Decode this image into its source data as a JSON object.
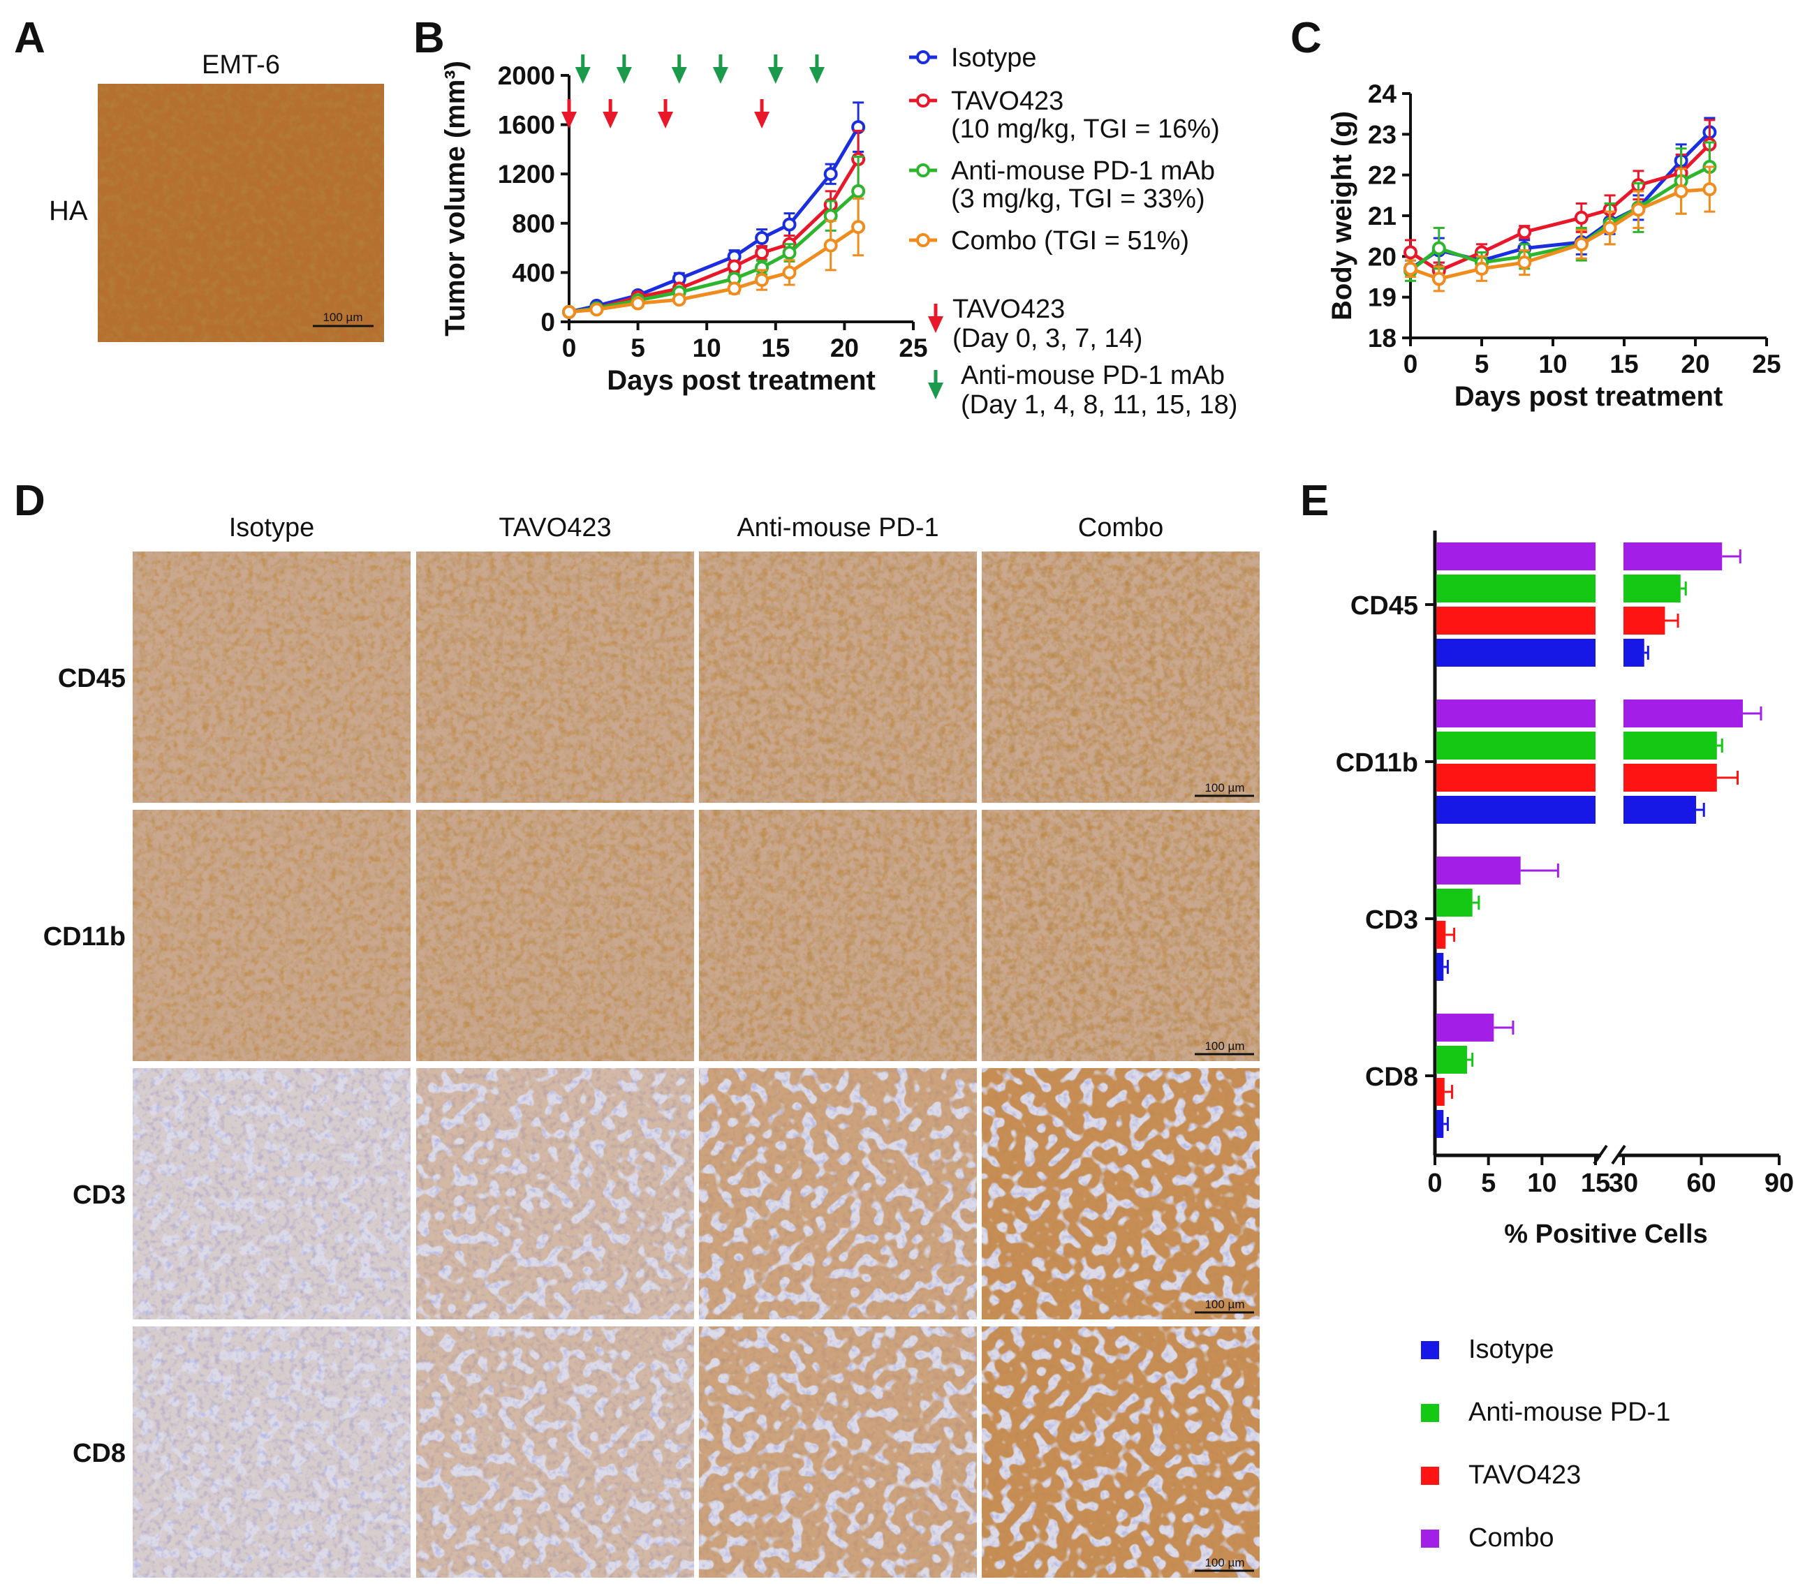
{
  "panels": {
    "A": {
      "label": "A",
      "title": "EMT-6",
      "row_label": "HA",
      "scale_bar": "100 µm",
      "stain_color": "#b5702f"
    },
    "B": {
      "label": "B",
      "dosing": {
        "tavo": {
          "label": "TAVO423",
          "schedule": "(Day 0, 3, 7, 14)",
          "days": [
            0,
            3,
            7,
            14
          ],
          "color": "#e8182a"
        },
        "pd1": {
          "label": "Anti-mouse PD-1 mAb",
          "schedule": "(Day 1, 4, 8, 11, 15, 18)",
          "days": [
            1,
            4,
            8,
            11,
            15,
            18
          ],
          "color": "#1a9a4a"
        }
      }
    },
    "C": {
      "label": "C"
    },
    "D": {
      "label": "D",
      "columns": [
        "Isotype",
        "TAVO423",
        "Anti-mouse PD-1",
        "Combo"
      ],
      "rows": [
        "CD45",
        "CD11b",
        "CD3",
        "CD8"
      ],
      "scale_bar": "100 µm"
    },
    "E": {
      "label": "E"
    }
  },
  "chart_data": [
    {
      "id": "B",
      "type": "line",
      "title": "",
      "xlabel": "Days post treatment",
      "ylabel": "Tumor volume (mm³)",
      "xlim": [
        0,
        25
      ],
      "ylim": [
        0,
        2000
      ],
      "xticks": [
        "0",
        "5",
        "10",
        "15",
        "20",
        "25"
      ],
      "yticks": [
        "0",
        "400",
        "800",
        "1200",
        "1600",
        "2000"
      ],
      "x": [
        0,
        2,
        5,
        8,
        12,
        14,
        16,
        19,
        21
      ],
      "series": [
        {
          "name": "Isotype",
          "legend": [
            "Isotype"
          ],
          "color": "#1a2ee0",
          "values": [
            80,
            130,
            215,
            350,
            530,
            680,
            790,
            1200,
            1580
          ],
          "errors": [
            15,
            20,
            30,
            45,
            50,
            70,
            90,
            80,
            200
          ]
        },
        {
          "name": "TAVO423",
          "legend": [
            "TAVO423",
            "(10 mg/kg, TGI = 16%)"
          ],
          "color": "#e8182a",
          "values": [
            80,
            110,
            200,
            270,
            450,
            560,
            630,
            950,
            1320
          ],
          "errors": [
            15,
            20,
            25,
            35,
            45,
            55,
            70,
            110,
            230
          ]
        },
        {
          "name": "Anti-mouse PD-1 mAb",
          "legend": [
            "Anti-mouse PD-1 mAb",
            "(3 mg/kg, TGI = 33%)"
          ],
          "color": "#2db52d",
          "values": [
            80,
            110,
            175,
            240,
            350,
            440,
            560,
            860,
            1060
          ],
          "errors": [
            15,
            15,
            25,
            30,
            40,
            55,
            70,
            120,
            280
          ]
        },
        {
          "name": "Combo",
          "legend": [
            "Combo (TGI = 51%)"
          ],
          "color": "#f08c1e",
          "values": [
            80,
            100,
            150,
            180,
            270,
            340,
            400,
            620,
            770
          ],
          "errors": [
            15,
            15,
            20,
            25,
            40,
            80,
            100,
            200,
            230
          ]
        }
      ]
    },
    {
      "id": "C",
      "type": "line",
      "title": "",
      "xlabel": "Days post treatment",
      "ylabel": "Body weight (g)",
      "xlim": [
        0,
        25
      ],
      "ylim": [
        18,
        24
      ],
      "xticks": [
        "0",
        "5",
        "10",
        "15",
        "20",
        "25"
      ],
      "yticks": [
        "18",
        "19",
        "20",
        "21",
        "22",
        "23",
        "24"
      ],
      "x": [
        0,
        2,
        5,
        8,
        12,
        14,
        16,
        19,
        21
      ],
      "series": [
        {
          "name": "Isotype",
          "color": "#1a2ee0",
          "values": [
            19.7,
            20.15,
            19.9,
            20.2,
            20.35,
            20.85,
            21.2,
            22.35,
            23.05
          ],
          "errors": [
            0.2,
            0.3,
            0.2,
            0.2,
            0.3,
            0.3,
            0.3,
            0.4,
            0.35
          ]
        },
        {
          "name": "TAVO423",
          "color": "#e8182a",
          "values": [
            20.1,
            19.65,
            20.1,
            20.6,
            20.95,
            21.15,
            21.75,
            22.05,
            22.75
          ],
          "errors": [
            0.3,
            0.2,
            0.2,
            0.15,
            0.35,
            0.35,
            0.35,
            0.45,
            0.6
          ]
        },
        {
          "name": "Anti-mouse PD-1 mAb",
          "color": "#2db52d",
          "values": [
            19.65,
            20.2,
            19.85,
            20.0,
            20.3,
            20.8,
            21.2,
            21.85,
            22.2
          ],
          "errors": [
            0.25,
            0.5,
            0.25,
            0.3,
            0.4,
            0.5,
            0.6,
            0.8,
            0.6
          ]
        },
        {
          "name": "Combo",
          "color": "#f08c1e",
          "values": [
            19.7,
            19.45,
            19.7,
            19.85,
            20.3,
            20.7,
            21.15,
            21.6,
            21.65
          ],
          "errors": [
            0.2,
            0.3,
            0.3,
            0.3,
            0.35,
            0.4,
            0.45,
            0.55,
            0.55
          ]
        }
      ]
    },
    {
      "id": "E",
      "type": "bar",
      "orientation": "horizontal",
      "title": "",
      "xlabel": "% Positive Cells",
      "ylabel": "",
      "axis_break": [
        15,
        30
      ],
      "xlim": [
        0,
        90
      ],
      "xticks": [
        "0",
        "5",
        "10",
        "15",
        "30",
        "60",
        "90"
      ],
      "categories": [
        "CD45",
        "CD11b",
        "CD3",
        "CD8"
      ],
      "series": [
        {
          "name": "Isotype",
          "color": "#1717e6",
          "values": [
            38,
            58,
            0.8,
            0.8
          ],
          "errors": [
            1.5,
            3,
            0.4,
            0.4
          ]
        },
        {
          "name": "Anti-mouse PD-1",
          "color": "#14c814",
          "values": [
            52,
            66,
            3.5,
            3.0
          ],
          "errors": [
            2,
            2,
            0.6,
            0.5
          ]
        },
        {
          "name": "TAVO423",
          "color": "#ff1414",
          "values": [
            46,
            66,
            1.0,
            0.9
          ],
          "errors": [
            5,
            8,
            0.8,
            0.7
          ]
        },
        {
          "name": "Combo",
          "color": "#a31ee6",
          "values": [
            68,
            76,
            8.0,
            5.5
          ],
          "errors": [
            7,
            7,
            3.5,
            1.8
          ]
        }
      ]
    }
  ]
}
